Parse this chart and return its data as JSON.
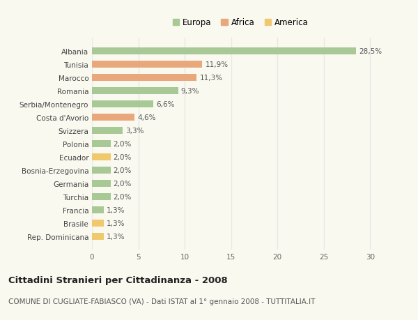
{
  "countries": [
    "Albania",
    "Tunisia",
    "Marocco",
    "Romania",
    "Serbia/Montenegro",
    "Costa d'Avorio",
    "Svizzera",
    "Polonia",
    "Ecuador",
    "Bosnia-Erzegovina",
    "Germania",
    "Turchia",
    "Francia",
    "Brasile",
    "Rep. Dominicana"
  ],
  "values": [
    28.5,
    11.9,
    11.3,
    9.3,
    6.6,
    4.6,
    3.3,
    2.0,
    2.0,
    2.0,
    2.0,
    2.0,
    1.3,
    1.3,
    1.3
  ],
  "continents": [
    "Europa",
    "Africa",
    "Africa",
    "Europa",
    "Europa",
    "Africa",
    "Europa",
    "Europa",
    "America",
    "Europa",
    "Europa",
    "Europa",
    "Europa",
    "America",
    "America"
  ],
  "colors": {
    "Europa": "#a8c896",
    "Africa": "#e8a87c",
    "America": "#f0c96e"
  },
  "xlim": [
    0,
    32
  ],
  "xticks": [
    0,
    5,
    10,
    15,
    20,
    25,
    30
  ],
  "title": "Cittadini Stranieri per Cittadinanza - 2008",
  "subtitle": "COMUNE DI CUGLIATE-FABIASCO (VA) - Dati ISTAT al 1° gennaio 2008 - TUTTITALIA.IT",
  "background_color": "#f9f9f0",
  "grid_color": "#e8e8e8",
  "bar_height": 0.55,
  "title_fontsize": 9.5,
  "subtitle_fontsize": 7.5,
  "label_fontsize": 7.5,
  "tick_fontsize": 7.5,
  "legend_fontsize": 8.5
}
